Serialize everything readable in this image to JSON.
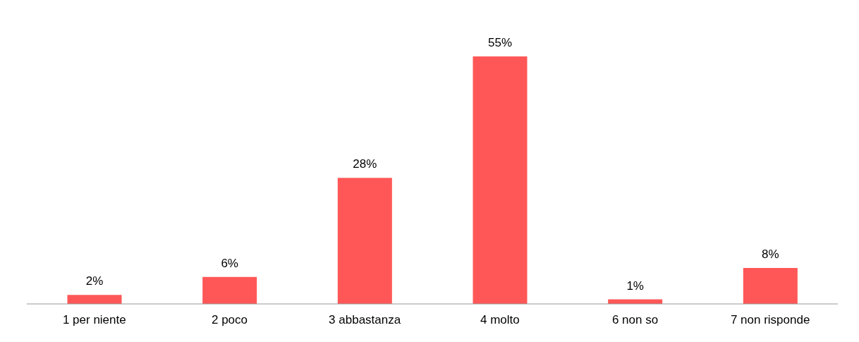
{
  "chart_data": {
    "type": "bar",
    "categories": [
      "1 per niente",
      "2 poco",
      "3 abbastanza",
      "4 molto",
      "6 non so",
      "7 non risponde"
    ],
    "values": [
      2,
      6,
      28,
      55,
      1,
      8
    ],
    "value_labels": [
      "2%",
      "6%",
      "28%",
      "55%",
      "1%",
      "8%"
    ],
    "color": "#ff5757",
    "grid": false
  }
}
